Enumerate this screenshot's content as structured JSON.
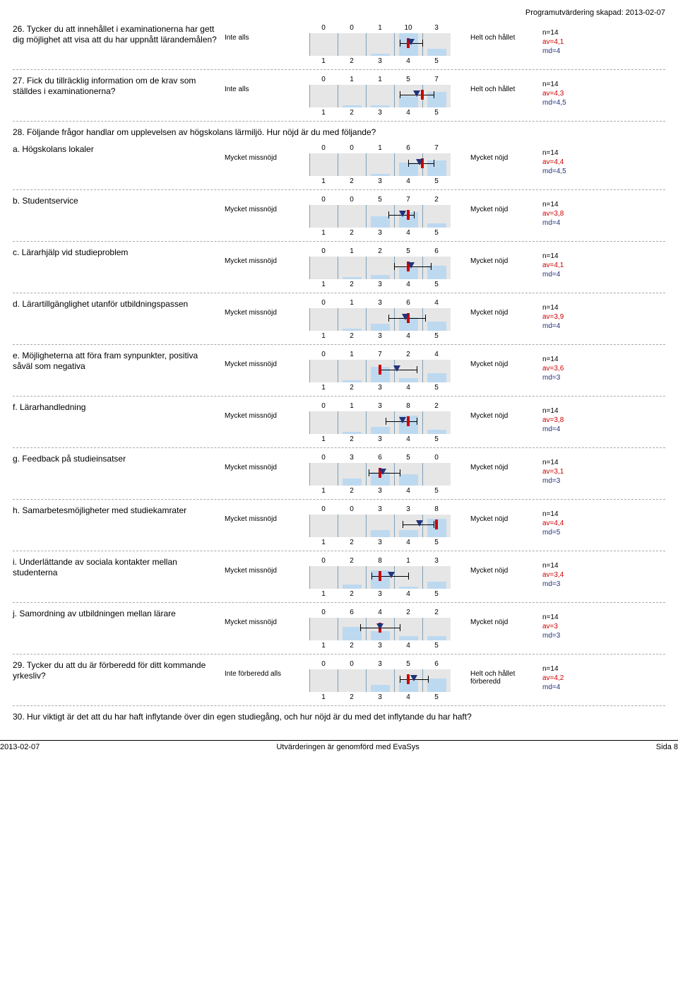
{
  "header": "Programutvärdering skapad: 2013-02-07",
  "footer": {
    "date": "2013-02-07",
    "center": "Utvärderingen är genomförd med EvaSys",
    "page": "Sida 8"
  },
  "chart": {
    "bg": "#e6e6e6",
    "bar_color": "#bdd9f0",
    "grid_color": "#7da0b8",
    "median_color": "#cc0000",
    "mean_color": "#24327a",
    "ticks": [
      "1",
      "2",
      "3",
      "4",
      "5"
    ],
    "max_count": 10
  },
  "section_intro_28": "28. Följande frågor handlar om upplevelsen av högskolans lärmiljö. Hur nöjd är du med följande?",
  "q30_text": "30. Hur viktigt är det att du har haft inflytande över din egen studiegång, och hur nöjd är du med det inflytande du har haft?",
  "items": [
    {
      "q": "26. Tycker du att innehållet i examinationerna har gett dig möjlighet att visa att du har uppnått lärandemålen?",
      "left": "Inte alls",
      "right": "Helt och hållet",
      "counts": [
        0,
        0,
        1,
        10,
        3
      ],
      "n": "n=14",
      "av": "av=4,1",
      "md": "md=4",
      "mean": 4.1,
      "median": 4.0,
      "ci_lo": 3.7,
      "ci_hi": 4.5
    },
    {
      "q": "27. Fick du tillräcklig information om de krav som ställdes i examinationerna?",
      "left": "Inte alls",
      "right": "Helt och hållet",
      "counts": [
        0,
        1,
        1,
        5,
        7
      ],
      "n": "n=14",
      "av": "av=4,3",
      "md": "md=4,5",
      "mean": 4.3,
      "median": 4.5,
      "ci_lo": 3.7,
      "ci_hi": 4.9
    },
    {
      "section": true
    },
    {
      "q": "a. Högskolans lokaler",
      "left": "Mycket missnöjd",
      "right": "Mycket nöjd",
      "counts": [
        0,
        0,
        1,
        6,
        7
      ],
      "n": "n=14",
      "av": "av=4,4",
      "md": "md=4,5",
      "mean": 4.4,
      "median": 4.5,
      "ci_lo": 4.0,
      "ci_hi": 4.9
    },
    {
      "q": "b. Studentservice",
      "left": "Mycket missnöjd",
      "right": "Mycket nöjd",
      "counts": [
        0,
        0,
        5,
        7,
        2
      ],
      "n": "n=14",
      "av": "av=3,8",
      "md": "md=4",
      "mean": 3.8,
      "median": 4.0,
      "ci_lo": 3.3,
      "ci_hi": 4.2
    },
    {
      "q": "c. Lärarhjälp vid studieproblem",
      "left": "Mycket missnöjd",
      "right": "Mycket nöjd",
      "counts": [
        0,
        1,
        2,
        5,
        6
      ],
      "n": "n=14",
      "av": "av=4,1",
      "md": "md=4",
      "mean": 4.1,
      "median": 4.0,
      "ci_lo": 3.5,
      "ci_hi": 4.8
    },
    {
      "q": "d. Lärartillgänglighet utanför utbildningspassen",
      "left": "Mycket missnöjd",
      "right": "Mycket nöjd",
      "counts": [
        0,
        1,
        3,
        6,
        4
      ],
      "n": "n=14",
      "av": "av=3,9",
      "md": "md=4",
      "mean": 3.9,
      "median": 4.0,
      "ci_lo": 3.3,
      "ci_hi": 4.6
    },
    {
      "q": "e. Möjligheterna att föra fram synpunkter, positiva såväl som negativa",
      "left": "Mycket missnöjd",
      "right": "Mycket nöjd",
      "counts": [
        0,
        1,
        7,
        2,
        4
      ],
      "n": "n=14",
      "av": "av=3,6",
      "md": "md=3",
      "mean": 3.6,
      "median": 3.0,
      "ci_lo": 3.0,
      "ci_hi": 4.3
    },
    {
      "q": "f. Lärarhandledning",
      "left": "Mycket missnöjd",
      "right": "Mycket nöjd",
      "counts": [
        0,
        1,
        3,
        8,
        2
      ],
      "n": "n=14",
      "av": "av=3,8",
      "md": "md=4",
      "mean": 3.8,
      "median": 4.0,
      "ci_lo": 3.2,
      "ci_hi": 4.3
    },
    {
      "q": "g. Feedback på studieinsatser",
      "left": "Mycket missnöjd",
      "right": "Mycket nöjd",
      "counts": [
        0,
        3,
        6,
        5,
        0
      ],
      "n": "n=14",
      "av": "av=3,1",
      "md": "md=3",
      "mean": 3.1,
      "median": 3.0,
      "ci_lo": 2.6,
      "ci_hi": 3.7
    },
    {
      "q": "h. Samarbetesmöjligheter med studiekamrater",
      "left": "Mycket missnöjd",
      "right": "Mycket nöjd",
      "counts": [
        0,
        0,
        3,
        3,
        8
      ],
      "n": "n=14",
      "av": "av=4,4",
      "md": "md=5",
      "mean": 4.4,
      "median": 5.0,
      "ci_lo": 3.8,
      "ci_hi": 4.9
    },
    {
      "q": "i. Underlättande av sociala kontakter mellan studenterna",
      "left": "Mycket missnöjd",
      "right": "Mycket nöjd",
      "counts": [
        0,
        2,
        8,
        1,
        3
      ],
      "n": "n=14",
      "av": "av=3,4",
      "md": "md=3",
      "mean": 3.4,
      "median": 3.0,
      "ci_lo": 2.7,
      "ci_hi": 4.0
    },
    {
      "q": "j. Samordning av utbildningen mellan lärare",
      "left": "Mycket missnöjd",
      "right": "Mycket nöjd",
      "counts": [
        0,
        6,
        4,
        2,
        2
      ],
      "n": "n=14",
      "av": "av=3",
      "md": "md=3",
      "mean": 3.0,
      "median": 3.0,
      "ci_lo": 2.3,
      "ci_hi": 3.7
    },
    {
      "q": "29. Tycker du att du är förberedd för ditt kommande yrkesliv?",
      "left": "Inte förberedd alls",
      "right": "Helt och hållet förberedd",
      "counts": [
        0,
        0,
        3,
        5,
        6
      ],
      "n": "n=14",
      "av": "av=4,2",
      "md": "md=4",
      "mean": 4.2,
      "median": 4.0,
      "ci_lo": 3.7,
      "ci_hi": 4.7
    }
  ]
}
